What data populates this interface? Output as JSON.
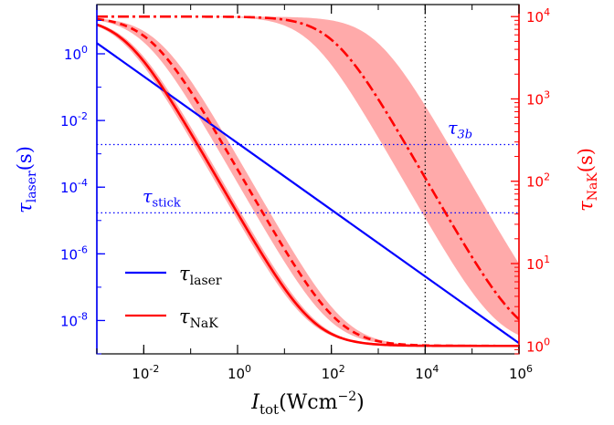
{
  "chart_data": {
    "type": "line",
    "xlabel": {
      "symbol": "I",
      "sub": "tot",
      "unit_open": "(Wcm",
      "unit_exp": "−2",
      "unit_close": ")"
    },
    "ylabel_left": {
      "symbol": "τ",
      "sub": "laser",
      "unit": "(s)"
    },
    "ylabel_right": {
      "symbol": "τ",
      "sub": "NaK",
      "unit": "(s)"
    },
    "x_scale": "log",
    "xlim": [
      0.001,
      1000000
    ],
    "y_left_scale": "log",
    "y_left_lim": [
      1e-09,
      30
    ],
    "y_right_scale": "log",
    "y_right_lim": [
      0.8,
      14000
    ],
    "x_ticks": [
      {
        "base": "10",
        "exp": "-2",
        "value": 0.01
      },
      {
        "base": "10",
        "exp": "0",
        "value": 1
      },
      {
        "base": "10",
        "exp": "2",
        "value": 100
      },
      {
        "base": "10",
        "exp": "4",
        "value": 10000
      },
      {
        "base": "10",
        "exp": "6",
        "value": 1000000
      }
    ],
    "y_left_ticks": [
      {
        "base": "10",
        "exp": "0",
        "value": 1
      },
      {
        "base": "10",
        "exp": "-2",
        "value": 0.01
      },
      {
        "base": "10",
        "exp": "-4",
        "value": 0.0001
      },
      {
        "base": "10",
        "exp": "-6",
        "value": 1e-06
      },
      {
        "base": "10",
        "exp": "-8",
        "value": 1e-08
      }
    ],
    "y_right_ticks": [
      {
        "base": "10",
        "exp": "4",
        "value": 10000
      },
      {
        "base": "10",
        "exp": "3",
        "value": 1000
      },
      {
        "base": "10",
        "exp": "2",
        "value": 100
      },
      {
        "base": "10",
        "exp": "1",
        "value": 10
      },
      {
        "base": "10",
        "exp": "0",
        "value": 1
      }
    ],
    "vline_x": 10000,
    "hlines": [
      {
        "value": 0.0019,
        "label_symbol": "τ",
        "label_sub": "3b",
        "label_sub_italic": true
      },
      {
        "value": 1.7e-05,
        "label_symbol": "τ",
        "label_sub": "stick",
        "label_sub_italic": false
      }
    ],
    "legend": {
      "position": "lower-left",
      "entries": [
        {
          "symbol": "τ",
          "sub": "laser"
        },
        {
          "symbol": "τ",
          "sub": "NaK"
        }
      ]
    },
    "series": [
      {
        "name": "τ laser",
        "axis": "left",
        "color": "#0000ff",
        "x": [
          0.001,
          1000000
        ],
        "y": [
          2.1,
          2.1e-09
        ]
      },
      {
        "name": "τ NaK",
        "axis": "right",
        "color": "#ff0000",
        "curves": [
          {
            "style": "solid",
            "a": 10000,
            "b": 1,
            "Is": 0.004
          },
          {
            "style": "dashed",
            "a": 10000,
            "b": 1,
            "Is": 0.014
          },
          {
            "style": "dashdot",
            "a": 10000,
            "b": 1,
            "Is": 110
          }
        ],
        "bands": [
          {
            "a": 10000,
            "b": 1,
            "Is_low": 0.0033,
            "Is_high": 0.0048
          },
          {
            "a": 10000,
            "b": 1,
            "Is_low": 0.0095,
            "Is_high": 0.02
          },
          {
            "a": 10000,
            "b": 1,
            "Is_low": 35,
            "Is_high": 900
          }
        ]
      }
    ],
    "colors": {
      "left_axis": "#0000ff",
      "right_axis": "#ff0000",
      "band_fill": "#ffaaaa",
      "frame": "#000000"
    }
  }
}
